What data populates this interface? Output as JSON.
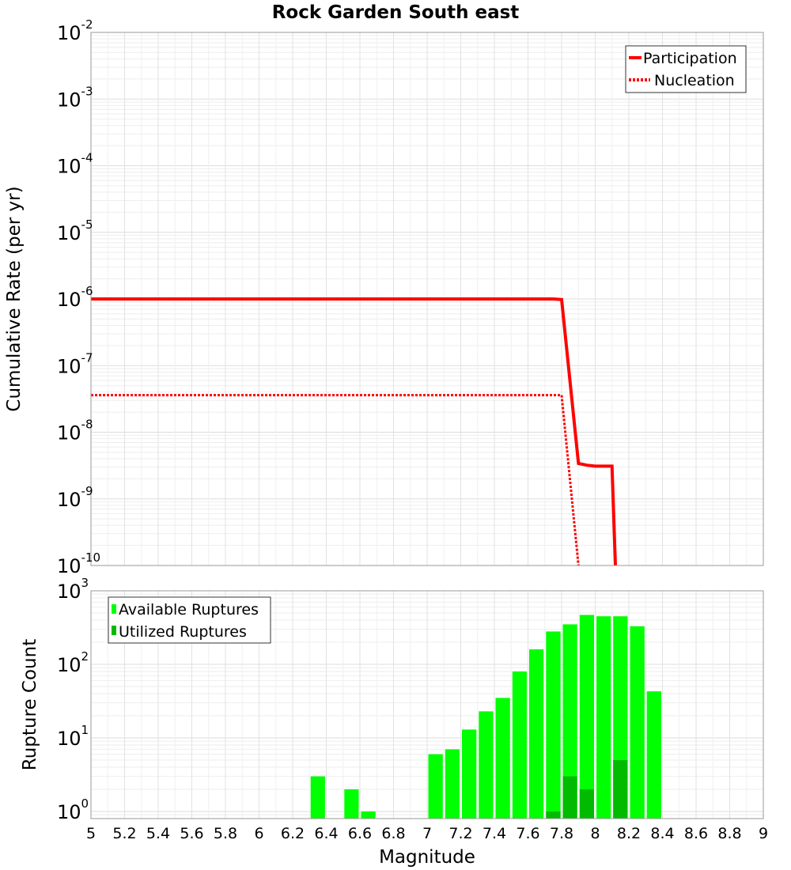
{
  "chart_data": [
    {
      "type": "line",
      "title": "Rock Garden South east",
      "xlabel": "",
      "ylabel": "Cumulative Rate (per yr)",
      "xlim": [
        5,
        9
      ],
      "ylim": [
        1e-10,
        0.01
      ],
      "yscale": "log",
      "yticks": [
        {
          "base": "10",
          "exp": "-2"
        },
        {
          "base": "10",
          "exp": "-3"
        },
        {
          "base": "10",
          "exp": "-4"
        },
        {
          "base": "10",
          "exp": "-5"
        },
        {
          "base": "10",
          "exp": "-6"
        },
        {
          "base": "10",
          "exp": "-7"
        },
        {
          "base": "10",
          "exp": "-8"
        },
        {
          "base": "10",
          "exp": "-9"
        },
        {
          "base": "10",
          "exp": "-10"
        }
      ],
      "grid": true,
      "legend_position": "top-right",
      "series": [
        {
          "name": "Participation",
          "color": "#ff0000",
          "style": "solid",
          "x": [
            5.0,
            7.75,
            7.8,
            7.9,
            7.95,
            8.0,
            8.1,
            8.12
          ],
          "y": [
            1e-06,
            1e-06,
            9.8e-07,
            3.4e-09,
            3.2e-09,
            3.1e-09,
            3.1e-09,
            1e-10
          ]
        },
        {
          "name": "Nucleation",
          "color": "#ff0000",
          "style": "dotted",
          "x": [
            5.0,
            7.8,
            7.9
          ],
          "y": [
            3.6e-08,
            3.6e-08,
            1e-10
          ]
        }
      ]
    },
    {
      "type": "bar",
      "title": "",
      "xlabel": "Magnitude",
      "ylabel": "Rupture Count",
      "xlim": [
        5,
        9
      ],
      "ylim": [
        0.8,
        1000
      ],
      "yscale": "log",
      "yticks": [
        {
          "base": "10",
          "exp": "3"
        },
        {
          "base": "10",
          "exp": "2"
        },
        {
          "base": "10",
          "exp": "1"
        },
        {
          "base": "10",
          "exp": "0"
        }
      ],
      "xticks": [
        "5",
        "5.2",
        "5.4",
        "5.6",
        "5.8",
        "6",
        "6.2",
        "6.4",
        "6.6",
        "6.8",
        "7",
        "7.2",
        "7.4",
        "7.6",
        "7.8",
        "8",
        "8.2",
        "8.4",
        "8.6",
        "8.8",
        "9"
      ],
      "grid": true,
      "legend_position": "top-left",
      "bin_width": 0.1,
      "series": [
        {
          "name": "Available Ruptures",
          "color": "#00ff00",
          "x": [
            6.35,
            6.55,
            6.65,
            7.05,
            7.15,
            7.25,
            7.35,
            7.45,
            7.55,
            7.65,
            7.75,
            7.85,
            7.95,
            8.05,
            8.15,
            8.25,
            8.35
          ],
          "values": [
            3,
            2,
            1,
            6,
            7,
            13,
            23,
            35,
            80,
            160,
            280,
            350,
            470,
            450,
            450,
            330,
            43
          ]
        },
        {
          "name": "Utilized Ruptures",
          "color": "#00bb00",
          "x": [
            7.75,
            7.85,
            7.95,
            8.15
          ],
          "values": [
            1,
            3,
            2,
            5
          ]
        }
      ]
    }
  ]
}
